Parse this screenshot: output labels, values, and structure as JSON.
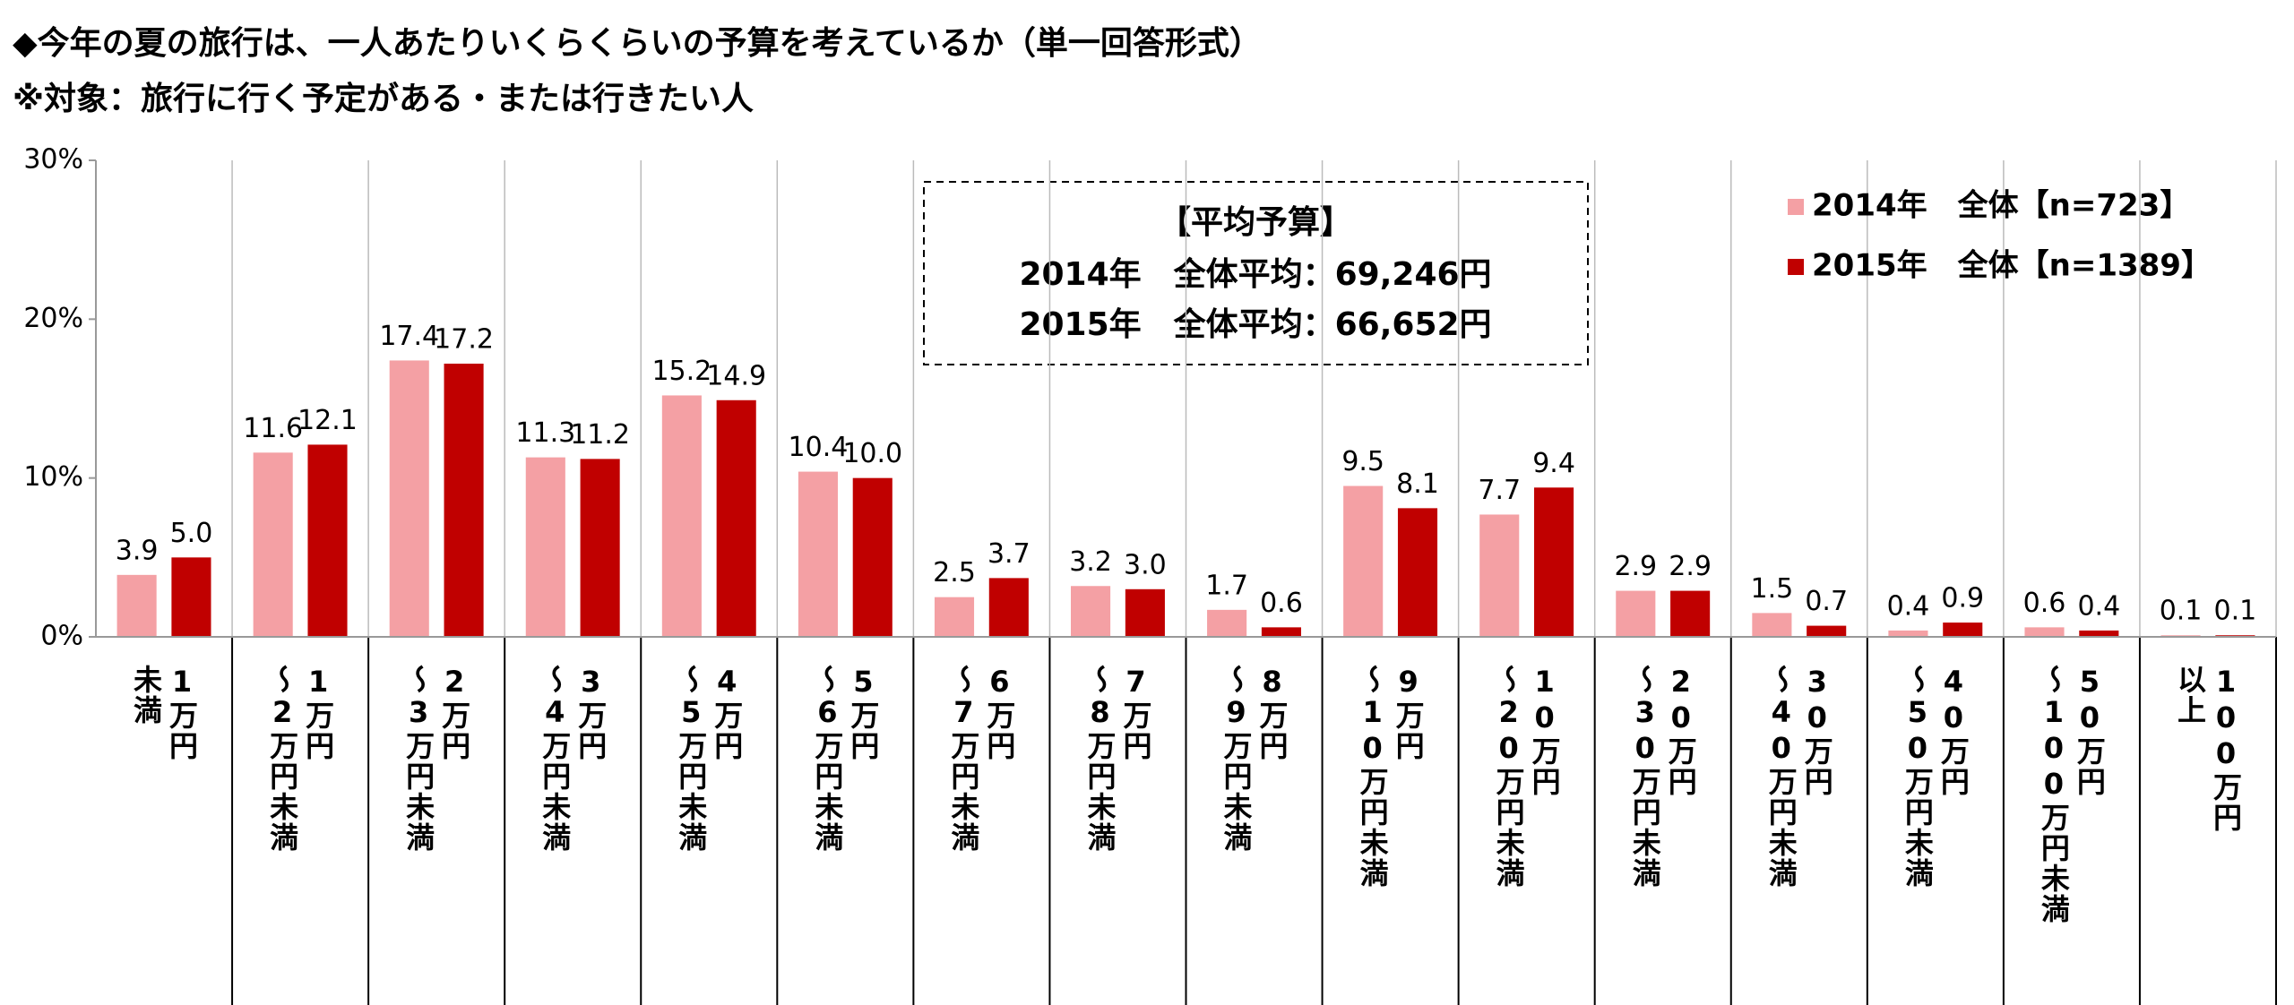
{
  "chart_data": {
    "type": "bar",
    "title": "◆今年の夏の旅行は、一人あたりいくらくらいの予算を考えているか（単一回答形式）",
    "subtitle": "※対象：旅行に行く予定がある・または行きたい人",
    "annotations": [
      "【平均予算】",
      "2014年　全体平均：69,246円",
      "2015年　全体平均：66,652円"
    ],
    "categories": [
      "1万円未満",
      "1万円～2万円未満",
      "2万円～3万円未満",
      "3万円～4万円未満",
      "4万円～5万円未満",
      "5万円～6万円未満",
      "6万円～7万円未満",
      "7万円～8万円未満",
      "8万円～9万円未満",
      "9万円～10万円未満",
      "10万円～20万円未満",
      "20万円～30万円未満",
      "30万円～40万円未満",
      "40万円～50万円未満",
      "50万円～100万円未満",
      "100万円以上"
    ],
    "series": [
      {
        "name": "2014年　全体【n=723】",
        "color": "#f4a0a4",
        "values": [
          3.9,
          11.6,
          17.4,
          11.3,
          15.2,
          10.4,
          2.5,
          3.2,
          1.7,
          9.5,
          7.7,
          2.9,
          1.5,
          0.4,
          0.6,
          0.1
        ],
        "value_labels": [
          "3.9",
          "11.6",
          "17.4",
          "11.3",
          "15.2",
          "10.4",
          "2.5",
          "3.2",
          "1.7",
          "9.5",
          "7.7",
          "2.9",
          "1.5",
          "0.4",
          "0.6",
          "0.1"
        ]
      },
      {
        "name": "2015年　全体【n=1389】",
        "color": "#c00000",
        "values": [
          5.0,
          12.1,
          17.2,
          11.2,
          14.9,
          10.0,
          3.7,
          3.0,
          0.6,
          8.1,
          9.4,
          2.9,
          0.7,
          0.9,
          0.4,
          0.1
        ],
        "value_labels": [
          "5.0",
          "12.1",
          "17.2",
          "11.2",
          "14.9",
          "10.0",
          "3.7",
          "3.0",
          "0.6",
          "8.1",
          "9.4",
          "2.9",
          "0.7",
          "0.9",
          "0.4",
          "0.1"
        ]
      }
    ],
    "ylim": [
      0,
      30
    ],
    "yticks": [
      {
        "value": 0,
        "label": "0%"
      },
      {
        "value": 10,
        "label": "10%"
      },
      {
        "value": 20,
        "label": "20%"
      },
      {
        "value": 30,
        "label": "30%"
      }
    ],
    "legend": "upper-right"
  }
}
